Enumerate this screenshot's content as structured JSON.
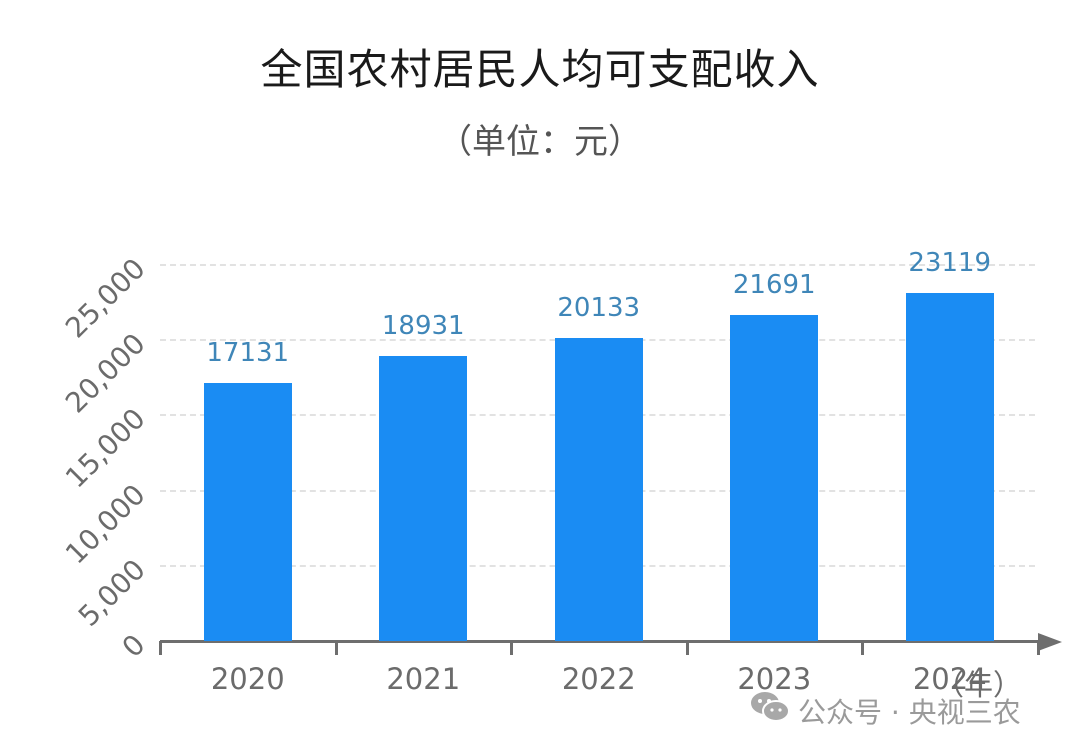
{
  "chart_data": {
    "type": "bar",
    "title": "全国农村居民人均可支配收入",
    "subtitle": "（单位：元）",
    "categories": [
      "2020",
      "2021",
      "2022",
      "2023",
      "2024"
    ],
    "values": [
      17131,
      18931,
      20133,
      21691,
      23119
    ],
    "value_labels": [
      "17131",
      "18931",
      "20133",
      "21691",
      "23119"
    ],
    "xlabel": "（年）",
    "ylabel": "",
    "ylim": [
      0,
      25000
    ],
    "yticks": [
      "0",
      "5,000",
      "10,000",
      "15,000",
      "20,000",
      "25,000"
    ],
    "ytick_values": [
      0,
      5000,
      10000,
      15000,
      20000,
      25000
    ],
    "grid": true,
    "legend": null,
    "bar_color": "#1a8cf3",
    "label_color": "#3f86b8"
  },
  "watermark": {
    "icon": "wechat-icon",
    "text": "公众号 · 央视三农"
  }
}
